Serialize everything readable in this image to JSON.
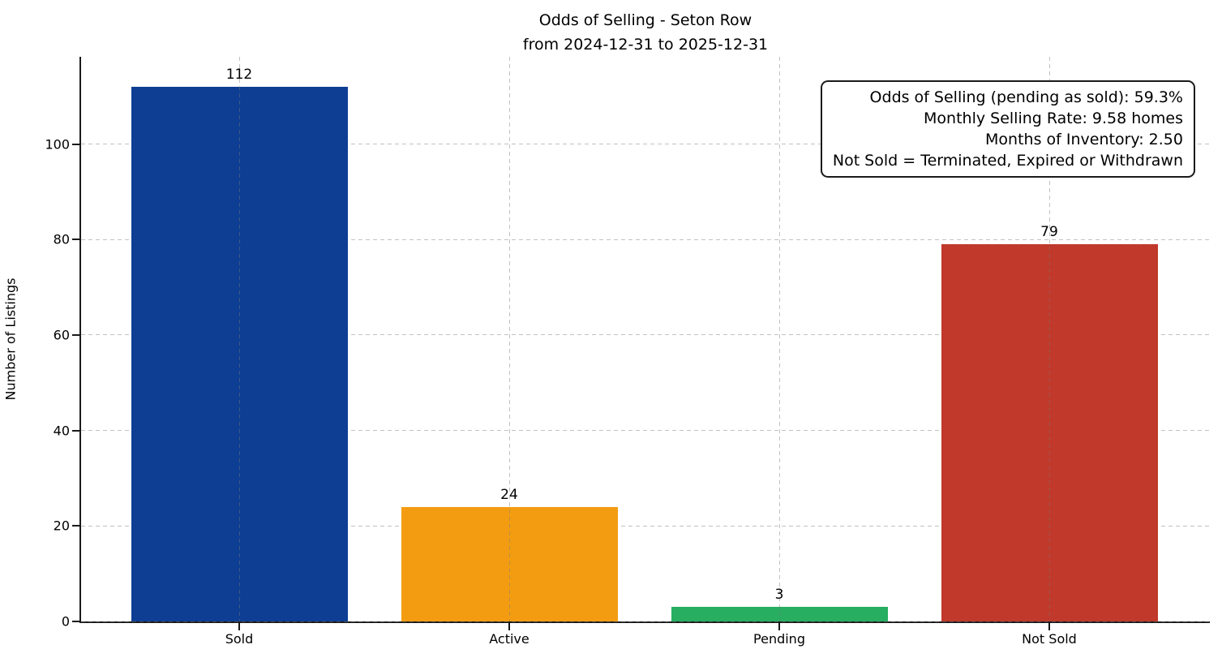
{
  "chart_data": {
    "type": "bar",
    "title": "Odds of Selling - Seton Row",
    "subtitle": "from 2024-12-31 to 2025-12-31",
    "categories": [
      "Sold",
      "Active",
      "Pending",
      "Not Sold"
    ],
    "values": [
      112,
      24,
      3,
      79
    ],
    "bar_colors": [
      "#0d3e93",
      "#f39c12",
      "#27ae60",
      "#c0392b"
    ],
    "xlabel": "",
    "ylabel": "Number of Listings",
    "yticks": [
      0,
      20,
      40,
      60,
      80,
      100
    ],
    "ylim": [
      0,
      118.3
    ],
    "grid": "dashed light-gray, horizontal at yticks and vertical at category centers, drawn over bars",
    "legend": "none",
    "annotation_box": {
      "position": "top-right",
      "lines": [
        "Odds of Selling (pending as sold): 59.3%",
        "Monthly Selling Rate: 9.58 homes",
        "Months of Inventory: 2.50",
        "Not Sold = Terminated, Expired or Withdrawn"
      ]
    }
  }
}
